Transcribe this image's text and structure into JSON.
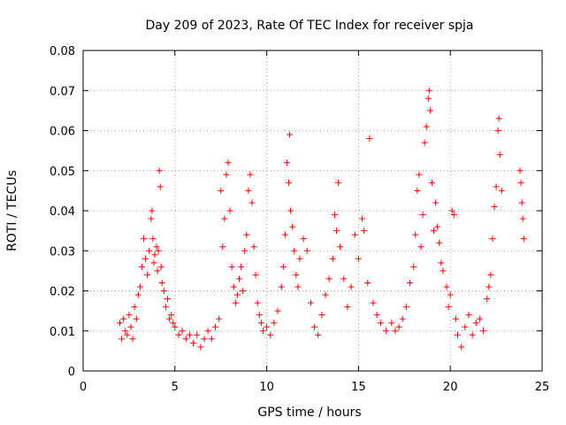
{
  "chart_data": {
    "type": "scatter",
    "title": "Day 209 of 2023, Rate Of TEC Index for receiver spja",
    "xlabel": "GPS time / hours",
    "ylabel": "ROTI / TECUs",
    "xlim": [
      0,
      25
    ],
    "ylim": [
      0,
      0.08
    ],
    "x_ticks": [
      0,
      5,
      10,
      15,
      20,
      25
    ],
    "x_tick_labels": [
      "0",
      "5",
      "10",
      "15",
      "20",
      "25"
    ],
    "y_ticks": [
      0,
      0.01,
      0.02,
      0.03,
      0.04,
      0.05,
      0.06,
      0.07,
      0.08
    ],
    "y_tick_labels": [
      "0",
      "0.01",
      "0.02",
      "0.03",
      "0.04",
      "0.05",
      "0.06",
      "0.07",
      "0.08"
    ],
    "grid": true,
    "marker": "plus",
    "color": "#ff0000",
    "series": [
      {
        "points": [
          [
            2.0,
            0.012
          ],
          [
            2.1,
            0.008
          ],
          [
            2.2,
            0.013
          ],
          [
            2.3,
            0.01
          ],
          [
            2.4,
            0.009
          ],
          [
            2.5,
            0.014
          ],
          [
            2.6,
            0.011
          ],
          [
            2.7,
            0.008
          ],
          [
            2.8,
            0.016
          ],
          [
            2.9,
            0.013
          ],
          [
            3.0,
            0.019
          ],
          [
            3.1,
            0.021
          ],
          [
            3.2,
            0.026
          ],
          [
            3.3,
            0.033
          ],
          [
            3.4,
            0.028
          ],
          [
            3.5,
            0.024
          ],
          [
            3.6,
            0.03
          ],
          [
            3.7,
            0.038
          ],
          [
            3.75,
            0.04
          ],
          [
            3.8,
            0.033
          ],
          [
            3.85,
            0.027
          ],
          [
            3.9,
            0.029
          ],
          [
            4.0,
            0.031
          ],
          [
            4.05,
            0.025
          ],
          [
            4.1,
            0.03
          ],
          [
            4.15,
            0.05
          ],
          [
            4.2,
            0.046
          ],
          [
            4.25,
            0.026
          ],
          [
            4.3,
            0.022
          ],
          [
            4.4,
            0.02
          ],
          [
            4.5,
            0.016
          ],
          [
            4.6,
            0.018
          ],
          [
            4.7,
            0.013
          ],
          [
            4.8,
            0.014
          ],
          [
            4.9,
            0.012
          ],
          [
            5.0,
            0.011
          ],
          [
            5.2,
            0.009
          ],
          [
            5.4,
            0.01
          ],
          [
            5.6,
            0.008
          ],
          [
            5.8,
            0.009
          ],
          [
            6.0,
            0.007
          ],
          [
            6.2,
            0.009
          ],
          [
            6.4,
            0.006
          ],
          [
            6.6,
            0.008
          ],
          [
            6.8,
            0.01
          ],
          [
            7.0,
            0.008
          ],
          [
            7.2,
            0.011
          ],
          [
            7.4,
            0.013
          ],
          [
            7.5,
            0.045
          ],
          [
            7.6,
            0.031
          ],
          [
            7.7,
            0.038
          ],
          [
            7.8,
            0.049
          ],
          [
            7.9,
            0.052
          ],
          [
            8.0,
            0.04
          ],
          [
            8.1,
            0.026
          ],
          [
            8.2,
            0.021
          ],
          [
            8.3,
            0.017
          ],
          [
            8.4,
            0.019
          ],
          [
            8.5,
            0.023
          ],
          [
            8.6,
            0.026
          ],
          [
            8.7,
            0.02
          ],
          [
            8.8,
            0.03
          ],
          [
            8.9,
            0.034
          ],
          [
            9.0,
            0.045
          ],
          [
            9.1,
            0.049
          ],
          [
            9.2,
            0.042
          ],
          [
            9.3,
            0.031
          ],
          [
            9.4,
            0.024
          ],
          [
            9.5,
            0.017
          ],
          [
            9.6,
            0.014
          ],
          [
            9.7,
            0.012
          ],
          [
            9.8,
            0.01
          ],
          [
            10.0,
            0.011
          ],
          [
            10.2,
            0.009
          ],
          [
            10.4,
            0.012
          ],
          [
            10.6,
            0.015
          ],
          [
            10.8,
            0.021
          ],
          [
            10.9,
            0.026
          ],
          [
            11.0,
            0.034
          ],
          [
            11.1,
            0.052
          ],
          [
            11.2,
            0.047
          ],
          [
            11.25,
            0.059
          ],
          [
            11.3,
            0.04
          ],
          [
            11.4,
            0.036
          ],
          [
            11.5,
            0.03
          ],
          [
            11.6,
            0.024
          ],
          [
            11.7,
            0.021
          ],
          [
            11.8,
            0.028
          ],
          [
            12.0,
            0.033
          ],
          [
            12.2,
            0.03
          ],
          [
            12.4,
            0.017
          ],
          [
            12.6,
            0.011
          ],
          [
            12.8,
            0.009
          ],
          [
            13.0,
            0.014
          ],
          [
            13.2,
            0.019
          ],
          [
            13.4,
            0.023
          ],
          [
            13.6,
            0.028
          ],
          [
            13.7,
            0.039
          ],
          [
            13.8,
            0.035
          ],
          [
            13.9,
            0.047
          ],
          [
            14.0,
            0.031
          ],
          [
            14.2,
            0.023
          ],
          [
            14.4,
            0.016
          ],
          [
            14.6,
            0.021
          ],
          [
            14.8,
            0.034
          ],
          [
            15.0,
            0.028
          ],
          [
            15.2,
            0.038
          ],
          [
            15.3,
            0.035
          ],
          [
            15.5,
            0.022
          ],
          [
            15.6,
            0.058
          ],
          [
            15.8,
            0.017
          ],
          [
            16.0,
            0.014
          ],
          [
            16.2,
            0.012
          ],
          [
            16.5,
            0.01
          ],
          [
            16.8,
            0.012
          ],
          [
            17.0,
            0.01
          ],
          [
            17.2,
            0.011
          ],
          [
            17.4,
            0.013
          ],
          [
            17.6,
            0.016
          ],
          [
            17.8,
            0.022
          ],
          [
            18.0,
            0.026
          ],
          [
            18.1,
            0.034
          ],
          [
            18.2,
            0.045
          ],
          [
            18.3,
            0.049
          ],
          [
            18.4,
            0.031
          ],
          [
            18.5,
            0.039
          ],
          [
            18.6,
            0.057
          ],
          [
            18.7,
            0.061
          ],
          [
            18.8,
            0.068
          ],
          [
            18.85,
            0.07
          ],
          [
            18.9,
            0.065
          ],
          [
            19.0,
            0.047
          ],
          [
            19.1,
            0.035
          ],
          [
            19.2,
            0.042
          ],
          [
            19.3,
            0.036
          ],
          [
            19.4,
            0.032
          ],
          [
            19.5,
            0.027
          ],
          [
            19.6,
            0.025
          ],
          [
            19.8,
            0.021
          ],
          [
            19.9,
            0.016
          ],
          [
            20.0,
            0.019
          ],
          [
            20.1,
            0.04
          ],
          [
            20.2,
            0.039
          ],
          [
            20.3,
            0.013
          ],
          [
            20.4,
            0.009
          ],
          [
            20.6,
            0.006
          ],
          [
            20.8,
            0.011
          ],
          [
            21.0,
            0.014
          ],
          [
            21.2,
            0.009
          ],
          [
            21.4,
            0.012
          ],
          [
            21.6,
            0.013
          ],
          [
            21.8,
            0.01
          ],
          [
            22.0,
            0.018
          ],
          [
            22.1,
            0.021
          ],
          [
            22.2,
            0.024
          ],
          [
            22.3,
            0.033
          ],
          [
            22.4,
            0.041
          ],
          [
            22.5,
            0.046
          ],
          [
            22.6,
            0.06
          ],
          [
            22.65,
            0.063
          ],
          [
            22.7,
            0.054
          ],
          [
            22.8,
            0.045
          ],
          [
            23.8,
            0.05
          ],
          [
            23.85,
            0.047
          ],
          [
            23.9,
            0.042
          ],
          [
            23.95,
            0.038
          ],
          [
            24.0,
            0.033
          ]
        ]
      }
    ]
  }
}
